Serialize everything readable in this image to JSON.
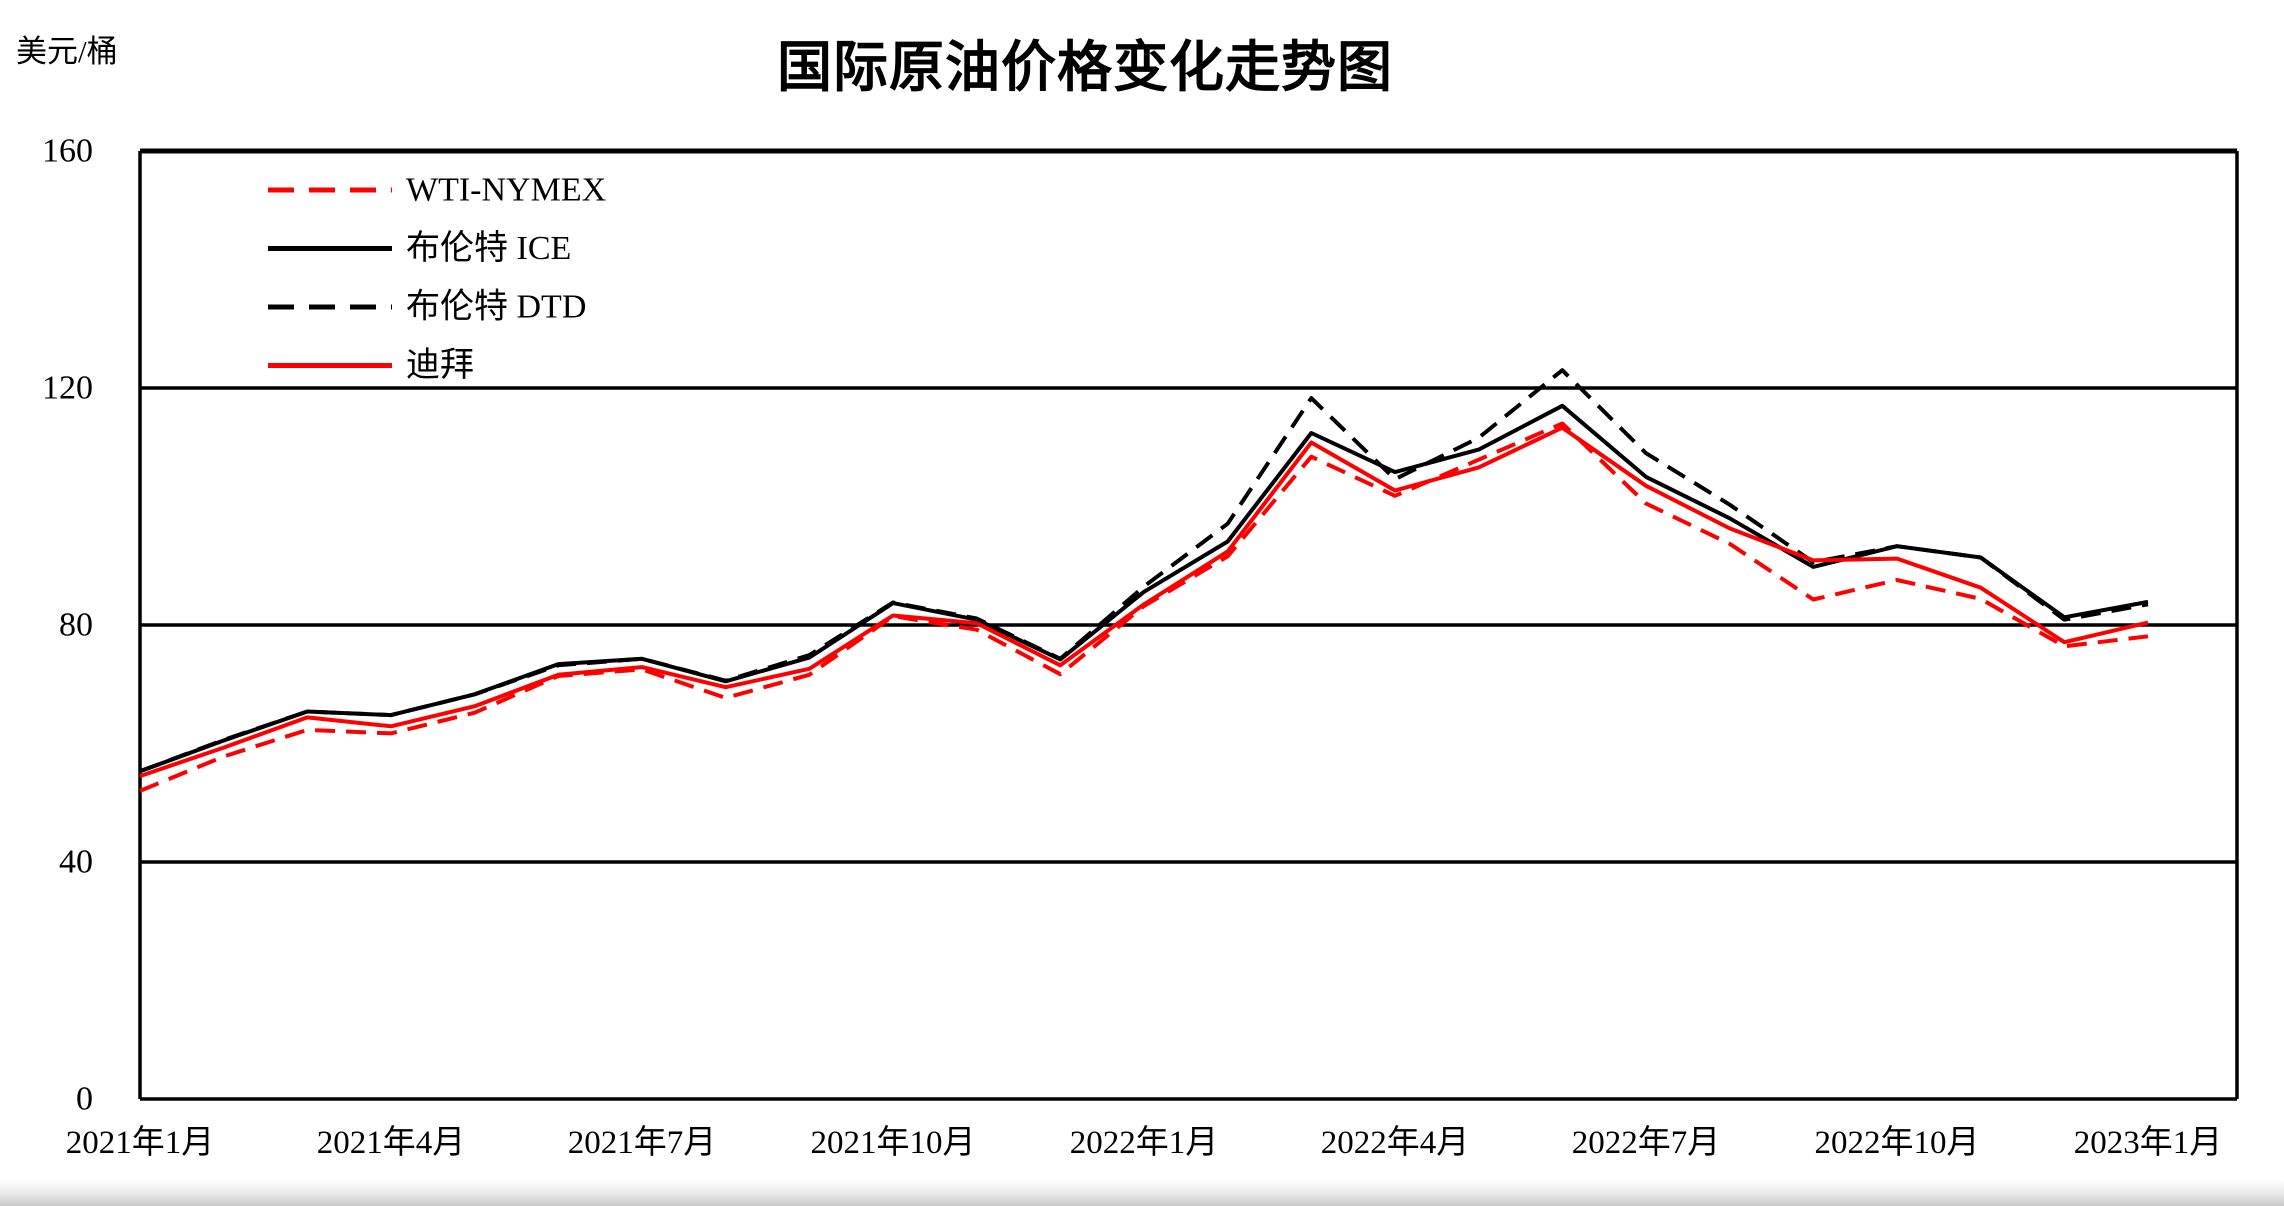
{
  "chart_data": {
    "type": "line",
    "title": "国际原油价格变化走势图",
    "unit_label": "美元/桶",
    "ylim": [
      0,
      160
    ],
    "y_ticks": [
      0,
      40,
      80,
      120,
      160
    ],
    "x_tick_labels": [
      "2021年1月",
      "2021年4月",
      "2021年7月",
      "2021年10月",
      "2022年1月",
      "2022年4月",
      "2022年7月",
      "2022年10月",
      "2023年1月"
    ],
    "x_months": [
      "2021年1月",
      "2021年2月",
      "2021年3月",
      "2021年4月",
      "2021年5月",
      "2021年6月",
      "2021年7月",
      "2021年8月",
      "2021年9月",
      "2021年10月",
      "2021年11月",
      "2021年12月",
      "2022年1月",
      "2022年2月",
      "2022年3月",
      "2022年4月",
      "2022年5月",
      "2022年6月",
      "2022年7月",
      "2022年8月",
      "2022年9月",
      "2022年10月",
      "2022年11月",
      "2022年12月",
      "2023年1月"
    ],
    "grid": "horizontal-only",
    "legend_position": "inside-top-left",
    "colors": {
      "red": "#fe0000",
      "black": "#000000"
    },
    "series": [
      {
        "name": "WTI-NYMEX",
        "color": "#fe0000",
        "line_style": "dashed",
        "values": [
          52.0,
          57.8,
          62.3,
          61.7,
          65.2,
          71.4,
          72.5,
          67.7,
          71.6,
          81.5,
          79.2,
          71.7,
          83.2,
          91.6,
          108.4,
          101.8,
          107.9,
          114.0,
          100.5,
          93.7,
          84.3,
          87.6,
          84.4,
          76.4,
          78.1
        ]
      },
      {
        "name": "布伦特 ICE",
        "color": "#000000",
        "line_style": "solid",
        "values": [
          55.3,
          60.5,
          65.4,
          64.8,
          68.3,
          73.4,
          74.3,
          70.5,
          74.5,
          83.7,
          80.9,
          74.2,
          85.6,
          94.1,
          112.4,
          105.8,
          109.6,
          117.0,
          105.0,
          98.0,
          89.8,
          93.3,
          91.4,
          81.3,
          83.9
        ]
      },
      {
        "name": "布伦特 DTD",
        "color": "#000000",
        "line_style": "dashed",
        "values": [
          55.3,
          60.6,
          65.4,
          64.8,
          68.3,
          73.2,
          74.3,
          70.6,
          74.9,
          83.8,
          81.1,
          74.3,
          86.5,
          97.1,
          118.3,
          104.6,
          111.6,
          123.0,
          109.0,
          100.3,
          90.6,
          93.3,
          91.4,
          80.9,
          83.5
        ]
      },
      {
        "name": "迪拜",
        "color": "#fe0000",
        "line_style": "solid",
        "values": [
          54.5,
          59.3,
          64.4,
          62.9,
          66.3,
          71.6,
          72.9,
          69.5,
          72.6,
          81.6,
          80.3,
          73.2,
          83.5,
          92.4,
          110.8,
          102.7,
          106.6,
          113.3,
          103.5,
          96.3,
          90.9,
          91.2,
          86.3,
          77.1,
          80.4
        ]
      }
    ]
  }
}
